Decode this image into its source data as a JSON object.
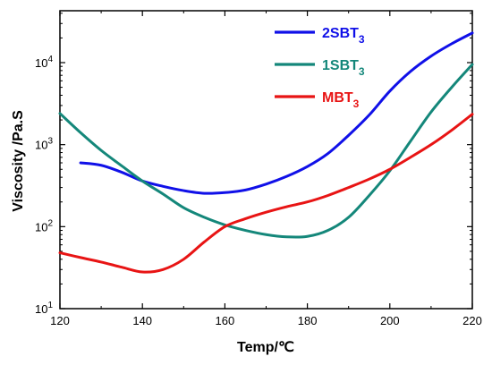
{
  "chart_data": {
    "type": "line",
    "xlabel": "Temp/℃",
    "ylabel": "Viscosity /Pa.S",
    "xlim": [
      120,
      220
    ],
    "ylim": [
      10,
      50000
    ],
    "yscale": "log",
    "x_ticks": [
      120,
      140,
      160,
      180,
      200,
      220
    ],
    "y_ticks": [
      {
        "value": 10,
        "base": "10",
        "exp": "1"
      },
      {
        "value": 100,
        "base": "10",
        "exp": "2"
      },
      {
        "value": 1000,
        "base": "10",
        "exp": "3"
      },
      {
        "value": 10000,
        "base": "10",
        "exp": "4"
      }
    ],
    "grid": false,
    "legend_position": "top-right",
    "series": [
      {
        "name": "2SBT",
        "name_sub": "3",
        "color": "#1010e8",
        "x": [
          125,
          130,
          135,
          140,
          145,
          150,
          155,
          160,
          165,
          170,
          175,
          180,
          185,
          190,
          195,
          200,
          205,
          210,
          215,
          220
        ],
        "y": [
          600,
          560,
          460,
          360,
          310,
          275,
          255,
          260,
          280,
          330,
          410,
          540,
          780,
          1300,
          2300,
          4500,
          7800,
          12000,
          17000,
          23000
        ]
      },
      {
        "name": "1SBT",
        "name_sub": "3",
        "color": "#14877a",
        "x": [
          120,
          125,
          130,
          135,
          140,
          145,
          150,
          155,
          160,
          165,
          170,
          175,
          180,
          185,
          190,
          195,
          200,
          205,
          210,
          215,
          220
        ],
        "y": [
          2400,
          1400,
          850,
          550,
          360,
          250,
          170,
          130,
          105,
          90,
          80,
          75,
          76,
          90,
          130,
          240,
          480,
          1100,
          2500,
          5000,
          9500
        ]
      },
      {
        "name": "MBT",
        "name_sub": "3",
        "color": "#e81414",
        "x": [
          120,
          125,
          130,
          135,
          140,
          145,
          150,
          155,
          160,
          165,
          170,
          175,
          180,
          185,
          190,
          195,
          200,
          205,
          210,
          215,
          220
        ],
        "y": [
          48,
          42,
          37,
          32,
          28,
          30,
          40,
          65,
          100,
          125,
          150,
          175,
          200,
          240,
          300,
          380,
          500,
          700,
          1000,
          1500,
          2350
        ]
      }
    ]
  }
}
